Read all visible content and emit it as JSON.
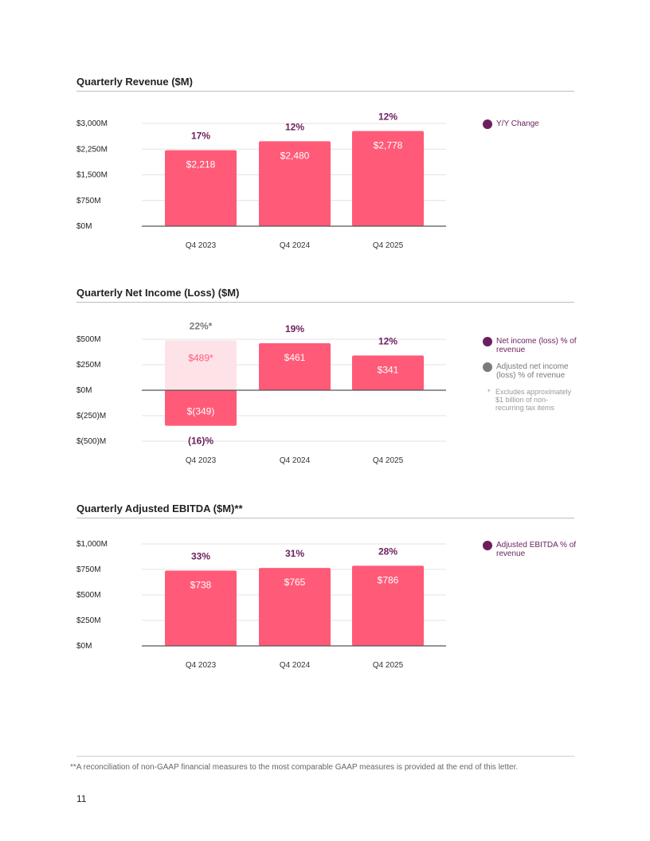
{
  "colors": {
    "bar": "#ff5a78",
    "bar_adjusted": "#fde3e8",
    "label_adjusted": "#ff5a78",
    "accent_purple": "#6c1f5e",
    "gray": "#7a7a7a",
    "gridline": "#e3e3e3",
    "axis": "#555555"
  },
  "chart_data": [
    {
      "type": "bar",
      "title": "Quarterly Revenue ($M)",
      "categories": [
        "Q4 2023",
        "Q4 2024",
        "Q4 2025"
      ],
      "values": [
        2218,
        2480,
        2778
      ],
      "value_labels": [
        "$2,218",
        "$2,480",
        "$2,778"
      ],
      "yoy_change": [
        "17%",
        "12%",
        "12%"
      ],
      "yticks": [
        0,
        750,
        1500,
        2250,
        3000
      ],
      "ytick_labels": [
        "$0M",
        "$750M",
        "$1,500M",
        "$2,250M",
        "$3,000M"
      ],
      "ylim": [
        0,
        3000
      ],
      "grid": true,
      "legend": [
        {
          "label": "Y/Y Change",
          "color": "#6c1f5e"
        }
      ]
    },
    {
      "type": "bar",
      "title": "Quarterly Net Income (Loss) ($M)",
      "categories": [
        "Q4 2023",
        "Q4 2024",
        "Q4 2025"
      ],
      "values": [
        -349,
        461,
        341
      ],
      "value_labels": [
        "$(349)",
        "$461",
        "$341"
      ],
      "pct_of_revenue": [
        "(16)%",
        "19%",
        "12%"
      ],
      "adjusted": {
        "category": "Q4 2023",
        "value": 489,
        "value_label": "$489*",
        "pct_label": "22%*"
      },
      "yticks": [
        -500,
        -250,
        0,
        250,
        500
      ],
      "ytick_labels": [
        "$(500)M",
        "$(250)M",
        "$0M",
        "$250M",
        "$500M"
      ],
      "ylim": [
        -500,
        500
      ],
      "grid": true,
      "legend": [
        {
          "label": "Net income (loss) % of revenue",
          "color": "#6c1f5e"
        },
        {
          "label": "Adjusted net income (loss) % of revenue",
          "color": "#7a7a7a"
        }
      ],
      "footnote": {
        "mark": "*",
        "text": "Excludes approximately $1 billion of non-recurring tax items"
      }
    },
    {
      "type": "bar",
      "title": "Quarterly Adjusted EBITDA ($M)**",
      "categories": [
        "Q4 2023",
        "Q4 2024",
        "Q4 2025"
      ],
      "values": [
        738,
        765,
        786
      ],
      "value_labels": [
        "$738",
        "$765",
        "$786"
      ],
      "pct_of_revenue": [
        "33%",
        "31%",
        "28%"
      ],
      "yticks": [
        0,
        250,
        500,
        750,
        1000
      ],
      "ytick_labels": [
        "$0M",
        "$250M",
        "$500M",
        "$750M",
        "$1,000M"
      ],
      "ylim": [
        0,
        1000
      ],
      "grid": true,
      "legend": [
        {
          "label": "Adjusted EBITDA % of revenue",
          "color": "#6c1f5e"
        }
      ]
    }
  ],
  "page": {
    "footnote": "**A reconciliation of non-GAAP financial measures to the most comparable GAAP measures is provided at the end of this letter.",
    "number": "11"
  }
}
